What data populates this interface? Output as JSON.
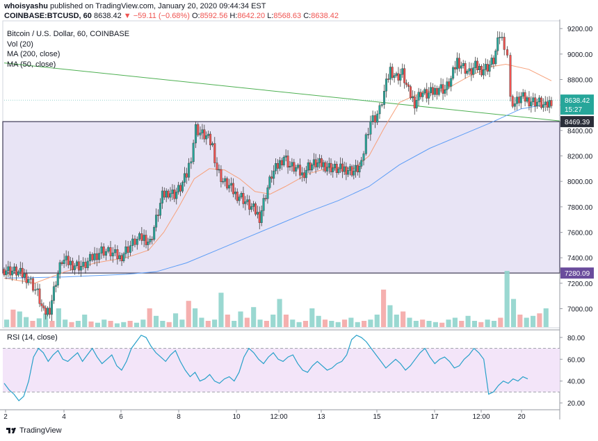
{
  "header": {
    "author": "whoisyashu",
    "published": "published on TradingView.com, January 20, 2020 09:44:34 EST",
    "symbol": "COINBASE:BTCUSD, 60",
    "last": "8638.42",
    "change": "▼ −59.11 (−0.68%)",
    "o_label": "O:",
    "o": "8592.56",
    "h_label": "H:",
    "h": "8642.20",
    "l_label": "L:",
    "l": "8568.63",
    "c_label": "C:",
    "c": "8638.42"
  },
  "legend": {
    "title": "Bitcoin / U.S. Dollar, 60, COINBASE",
    "vol": "Vol (20)",
    "ma200": "MA (200, close)",
    "ma50": "MA (50, close)"
  },
  "rsi_title": "RSI (14, close)",
  "footer": {
    "brand": "TradingView"
  },
  "colors": {
    "up": "#26a69a",
    "down": "#ef5350",
    "ma200": "#5b9cf6",
    "ma50": "#f7a07a",
    "trend": "#4caf50",
    "range_fill": "#e8e4f5",
    "rsi_fill": "#f3e5f9",
    "tag_last": "#26a69a",
    "tag_level": "#2a2e39",
    "tag_low": "#6a4c9c"
  },
  "chart_data": [
    {
      "type": "candlestick",
      "title": "Bitcoin / U.S. Dollar, 60, COINBASE",
      "y_ticks": [
        7000,
        7200,
        7400,
        7600,
        7800,
        8000,
        8200,
        8400,
        8600,
        8800,
        9000,
        9200
      ],
      "y_tick_labels": [
        "7000.00",
        "7200.00",
        "7400.00",
        "7600.00",
        "7800.00",
        "8000.00",
        "8200.00",
        "8400.00",
        "8600.00",
        "8800.00",
        "9000.00",
        "9200.00"
      ],
      "ylim": [
        6850,
        9250
      ],
      "x_tick_labels": [
        "2",
        "4",
        "6",
        "8",
        "10",
        "12:00",
        "13",
        "15",
        "17",
        "12:00",
        "20"
      ],
      "close_path": [
        {
          "x": 0,
          "y": 7310
        },
        {
          "x": 8,
          "y": 7290
        },
        {
          "x": 16,
          "y": 7240
        },
        {
          "x": 22,
          "y": 7120
        },
        {
          "x": 26,
          "y": 6960
        },
        {
          "x": 30,
          "y": 7000
        },
        {
          "x": 34,
          "y": 7220
        },
        {
          "x": 38,
          "y": 7380
        },
        {
          "x": 45,
          "y": 7350
        },
        {
          "x": 52,
          "y": 7330
        },
        {
          "x": 58,
          "y": 7400
        },
        {
          "x": 64,
          "y": 7460
        },
        {
          "x": 70,
          "y": 7440
        },
        {
          "x": 76,
          "y": 7400
        },
        {
          "x": 80,
          "y": 7460
        },
        {
          "x": 86,
          "y": 7530
        },
        {
          "x": 92,
          "y": 7560
        },
        {
          "x": 96,
          "y": 7520
        },
        {
          "x": 100,
          "y": 7700
        },
        {
          "x": 104,
          "y": 7880
        },
        {
          "x": 108,
          "y": 7920
        },
        {
          "x": 112,
          "y": 7900
        },
        {
          "x": 116,
          "y": 7950
        },
        {
          "x": 120,
          "y": 8050
        },
        {
          "x": 123,
          "y": 8200
        },
        {
          "x": 126,
          "y": 8420
        },
        {
          "x": 129,
          "y": 8380
        },
        {
          "x": 133,
          "y": 8350
        },
        {
          "x": 137,
          "y": 8280
        },
        {
          "x": 140,
          "y": 8100
        },
        {
          "x": 144,
          "y": 8000
        },
        {
          "x": 148,
          "y": 7960
        },
        {
          "x": 152,
          "y": 7900
        },
        {
          "x": 156,
          "y": 7880
        },
        {
          "x": 160,
          "y": 7820
        },
        {
          "x": 164,
          "y": 7780
        },
        {
          "x": 168,
          "y": 7720
        },
        {
          "x": 172,
          "y": 7900
        },
        {
          "x": 176,
          "y": 8050
        },
        {
          "x": 180,
          "y": 8120
        },
        {
          "x": 184,
          "y": 8200
        },
        {
          "x": 188,
          "y": 8120
        },
        {
          "x": 192,
          "y": 8100
        },
        {
          "x": 196,
          "y": 8050
        },
        {
          "x": 200,
          "y": 8120
        },
        {
          "x": 205,
          "y": 8140
        },
        {
          "x": 210,
          "y": 8130
        },
        {
          "x": 215,
          "y": 8110
        },
        {
          "x": 220,
          "y": 8090
        },
        {
          "x": 225,
          "y": 8100
        },
        {
          "x": 230,
          "y": 8080
        },
        {
          "x": 235,
          "y": 8120
        },
        {
          "x": 238,
          "y": 8350
        },
        {
          "x": 241,
          "y": 8480
        },
        {
          "x": 244,
          "y": 8500
        },
        {
          "x": 247,
          "y": 8560
        },
        {
          "x": 250,
          "y": 8700
        },
        {
          "x": 254,
          "y": 8880
        },
        {
          "x": 258,
          "y": 8820
        },
        {
          "x": 262,
          "y": 8850
        },
        {
          "x": 266,
          "y": 8700
        },
        {
          "x": 270,
          "y": 8620
        },
        {
          "x": 274,
          "y": 8700
        },
        {
          "x": 278,
          "y": 8680
        },
        {
          "x": 282,
          "y": 8700
        },
        {
          "x": 286,
          "y": 8740
        },
        {
          "x": 290,
          "y": 8720
        },
        {
          "x": 294,
          "y": 8800
        },
        {
          "x": 298,
          "y": 8950
        },
        {
          "x": 302,
          "y": 8900
        },
        {
          "x": 306,
          "y": 8850
        },
        {
          "x": 310,
          "y": 8900
        },
        {
          "x": 314,
          "y": 8880
        },
        {
          "x": 318,
          "y": 8900
        },
        {
          "x": 322,
          "y": 8950
        },
        {
          "x": 326,
          "y": 9150
        },
        {
          "x": 329,
          "y": 9080
        },
        {
          "x": 331,
          "y": 9000
        },
        {
          "x": 333,
          "y": 8640
        },
        {
          "x": 336,
          "y": 8610
        },
        {
          "x": 340,
          "y": 8660
        },
        {
          "x": 344,
          "y": 8640
        },
        {
          "x": 348,
          "y": 8630
        },
        {
          "x": 352,
          "y": 8620
        },
        {
          "x": 356,
          "y": 8580
        },
        {
          "x": 360,
          "y": 8638
        }
      ],
      "ma50_path": [
        {
          "x": 0,
          "y": 7240
        },
        {
          "x": 20,
          "y": 7200
        },
        {
          "x": 40,
          "y": 7290
        },
        {
          "x": 60,
          "y": 7360
        },
        {
          "x": 80,
          "y": 7400
        },
        {
          "x": 95,
          "y": 7460
        },
        {
          "x": 105,
          "y": 7600
        },
        {
          "x": 115,
          "y": 7800
        },
        {
          "x": 125,
          "y": 8020
        },
        {
          "x": 135,
          "y": 8100
        },
        {
          "x": 145,
          "y": 8090
        },
        {
          "x": 155,
          "y": 8020
        },
        {
          "x": 165,
          "y": 7920
        },
        {
          "x": 175,
          "y": 7900
        },
        {
          "x": 185,
          "y": 7960
        },
        {
          "x": 200,
          "y": 8060
        },
        {
          "x": 215,
          "y": 8110
        },
        {
          "x": 230,
          "y": 8100
        },
        {
          "x": 240,
          "y": 8200
        },
        {
          "x": 250,
          "y": 8420
        },
        {
          "x": 260,
          "y": 8620
        },
        {
          "x": 275,
          "y": 8700
        },
        {
          "x": 290,
          "y": 8720
        },
        {
          "x": 305,
          "y": 8820
        },
        {
          "x": 320,
          "y": 8900
        },
        {
          "x": 330,
          "y": 8920
        },
        {
          "x": 345,
          "y": 8880
        },
        {
          "x": 360,
          "y": 8790
        }
      ],
      "ma200_path": [
        {
          "x": 0,
          "y": 7240
        },
        {
          "x": 40,
          "y": 7250
        },
        {
          "x": 80,
          "y": 7270
        },
        {
          "x": 100,
          "y": 7290
        },
        {
          "x": 120,
          "y": 7360
        },
        {
          "x": 140,
          "y": 7460
        },
        {
          "x": 160,
          "y": 7560
        },
        {
          "x": 180,
          "y": 7660
        },
        {
          "x": 200,
          "y": 7760
        },
        {
          "x": 220,
          "y": 7850
        },
        {
          "x": 240,
          "y": 7960
        },
        {
          "x": 260,
          "y": 8130
        },
        {
          "x": 280,
          "y": 8260
        },
        {
          "x": 300,
          "y": 8360
        },
        {
          "x": 320,
          "y": 8460
        },
        {
          "x": 340,
          "y": 8570
        },
        {
          "x": 360,
          "y": 8610
        }
      ],
      "trendline": [
        {
          "x": 0,
          "y": 8930
        },
        {
          "x": 360,
          "y": 8475
        }
      ],
      "range_high": 8469.39,
      "range_low": 7280.09,
      "price_tags": {
        "last": "8638.42",
        "countdown": "15:27",
        "upper": "8469.39",
        "lower": "7280.09"
      }
    },
    {
      "type": "bar",
      "title": "Vol (20)",
      "values_note_categories": "per candle (relative)",
      "values": [
        0.12,
        0.28,
        0.25,
        0.16,
        0.1,
        0.14,
        0.22,
        0.1,
        0.3,
        0.12,
        0.08,
        0.1,
        0.2,
        0.09,
        0.07,
        0.12,
        0.1,
        0.06,
        0.08,
        0.1,
        0.07,
        0.12,
        0.3,
        0.18,
        0.1,
        0.08,
        0.22,
        0.12,
        0.42,
        0.3,
        0.15,
        0.1,
        0.12,
        0.55,
        0.2,
        0.1,
        0.25,
        0.15,
        0.32,
        0.12,
        0.1,
        0.2,
        0.45,
        0.2,
        0.12,
        0.08,
        0.1,
        0.3,
        0.18,
        0.12,
        0.1,
        0.08,
        0.12,
        0.15,
        0.08,
        0.1,
        0.12,
        0.2,
        0.6,
        0.35,
        0.2,
        0.25,
        0.15,
        0.1,
        0.12,
        0.1,
        0.08,
        0.07,
        0.12,
        0.15,
        0.1,
        0.18,
        0.1,
        0.08,
        0.12,
        0.1,
        0.15,
        0.9,
        0.45,
        0.2,
        0.15,
        0.18,
        0.22,
        0.3
      ],
      "y_ticks": []
    },
    {
      "type": "line",
      "title": "RSI (14, close)",
      "y_ticks": [
        20,
        40,
        60,
        80
      ],
      "y_tick_labels": [
        "20.00",
        "40.00",
        "60.00",
        "80.00"
      ],
      "ylim": [
        15,
        85
      ],
      "band": [
        30,
        70
      ],
      "values": [
        38,
        32,
        28,
        22,
        26,
        40,
        62,
        70,
        66,
        58,
        64,
        68,
        60,
        58,
        62,
        66,
        58,
        64,
        70,
        62,
        56,
        60,
        64,
        54,
        50,
        58,
        70,
        76,
        82,
        80,
        72,
        66,
        62,
        58,
        64,
        68,
        58,
        50,
        44,
        48,
        40,
        42,
        46,
        40,
        38,
        42,
        44,
        40,
        48,
        62,
        70,
        66,
        60,
        56,
        62,
        66,
        60,
        58,
        62,
        64,
        56,
        50,
        48,
        54,
        58,
        54,
        50,
        52,
        56,
        58,
        64,
        78,
        82,
        80,
        76,
        70,
        64,
        58,
        52,
        56,
        60,
        56,
        50,
        54,
        60,
        66,
        70,
        62,
        56,
        60,
        62,
        58,
        52,
        54,
        60,
        64,
        70,
        66,
        60,
        28,
        30,
        36,
        40,
        38,
        42,
        40,
        44,
        42
      ]
    }
  ]
}
